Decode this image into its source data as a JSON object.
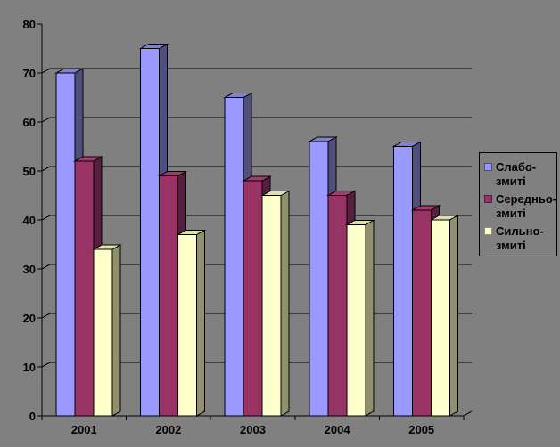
{
  "chart_data": {
    "type": "bar",
    "variant": "3d-column",
    "title": "",
    "categories": [
      "2001",
      "2002",
      "2003",
      "2004",
      "2005"
    ],
    "series": [
      {
        "name": "Слабо-змиті",
        "legend_lines": [
          "Слабо-",
          "змиті"
        ],
        "values": [
          70,
          75,
          65,
          56,
          55
        ],
        "color": "#9999FF",
        "color_top": "#8282C8",
        "color_side": "#4F4F7D"
      },
      {
        "name": "Середньо-змиті",
        "legend_lines": [
          "Середньо-",
          "змиті"
        ],
        "values": [
          52,
          49,
          48,
          45,
          42
        ],
        "color": "#993366",
        "color_top": "#A23B6F",
        "color_side": "#561F3E"
      },
      {
        "name": "Сильно-змиті",
        "legend_lines": [
          "Сильно-",
          "змиті"
        ],
        "values": [
          34,
          37,
          45,
          39,
          40
        ],
        "color": "#FFFFCC",
        "color_top": "#DEDEAE",
        "color_side": "#90906E"
      }
    ],
    "xlabel": "",
    "ylabel": "",
    "ylim": [
      0,
      80
    ],
    "yticks": [
      0,
      10,
      20,
      30,
      40,
      50,
      60,
      70,
      80
    ],
    "grid": true,
    "legend_position": "right",
    "background": "#808080",
    "gridline_color": "#000000",
    "axis_color": "#000000",
    "text_color": "#000000"
  }
}
